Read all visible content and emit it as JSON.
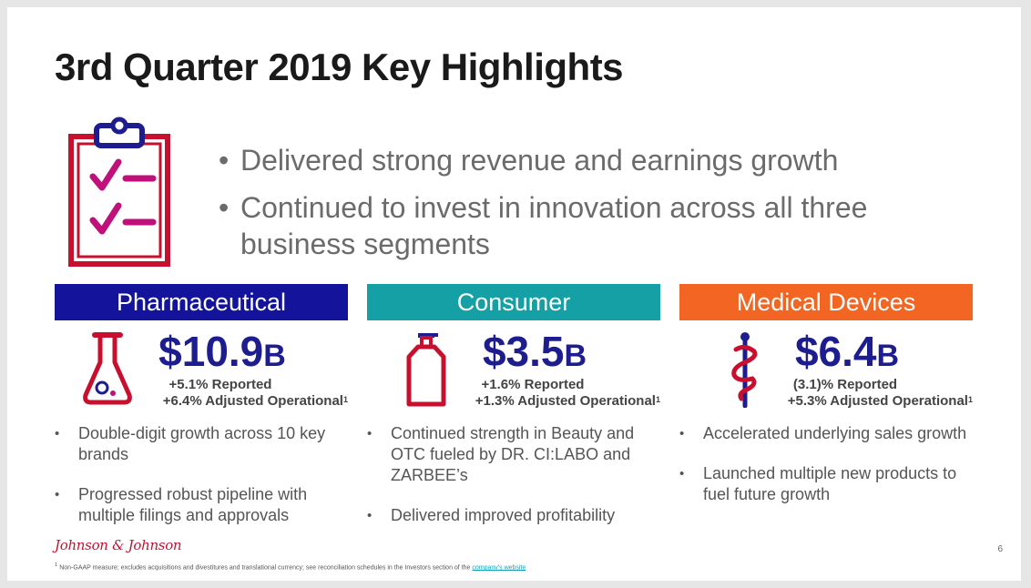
{
  "slide": {
    "title": "3rd Quarter 2019 Key Highlights",
    "page_number": "6"
  },
  "highlights": [
    {
      "bullet": "•",
      "text": "Delivered strong revenue and earnings growth"
    },
    {
      "bullet": "•",
      "text": "Continued to invest in innovation across all three business segments"
    }
  ],
  "segments": [
    {
      "name": "Pharmaceutical",
      "color": "#13139c",
      "icon": "flask-icon",
      "amount": "$10.9",
      "unit": "B",
      "reported": "+5.1% Reported",
      "adjusted": "+6.4% Adjusted Operational",
      "footnote_mark": "1",
      "bullets": [
        "Double-digit growth across 10 key brands",
        "Progressed robust pipeline with multiple filings and approvals"
      ]
    },
    {
      "name": "Consumer",
      "color": "#14a0a4",
      "icon": "pump-bottle-icon",
      "amount": "$3.5",
      "unit": "B",
      "reported": "+1.6% Reported",
      "adjusted": "+1.3% Adjusted Operational",
      "footnote_mark": "1",
      "bullets": [
        "Continued strength in Beauty and OTC fueled by DR. CI:LABO and ZARBEE’s",
        "Delivered improved profitability"
      ]
    },
    {
      "name": "Medical Devices",
      "color": "#f26522",
      "icon": "caduceus-icon",
      "amount": "$6.4",
      "unit": "B",
      "reported": "(3.1)% Reported",
      "adjusted": "+5.3% Adjusted Operational",
      "footnote_mark": "1",
      "bullets": [
        "Accelerated underlying sales growth",
        "Launched multiple new products to fuel future growth"
      ]
    }
  ],
  "footer": {
    "logo": "Johnson & Johnson",
    "footnote_mark": "1",
    "footnote_text": "Non-GAAP measure; excludes acquisitions and divestitures and translational currency; see reconciliation schedules in the Investors section of the",
    "footnote_link": "company's website"
  },
  "colors": {
    "brand_red": "#c8102e",
    "magenta": "#c0107a",
    "navy": "#1d1d8f",
    "text_gray": "#6b6b6b"
  },
  "icons": [
    "clipboard-checklist-icon",
    "flask-icon",
    "pump-bottle-icon",
    "caduceus-icon"
  ],
  "bullet_char": "•"
}
